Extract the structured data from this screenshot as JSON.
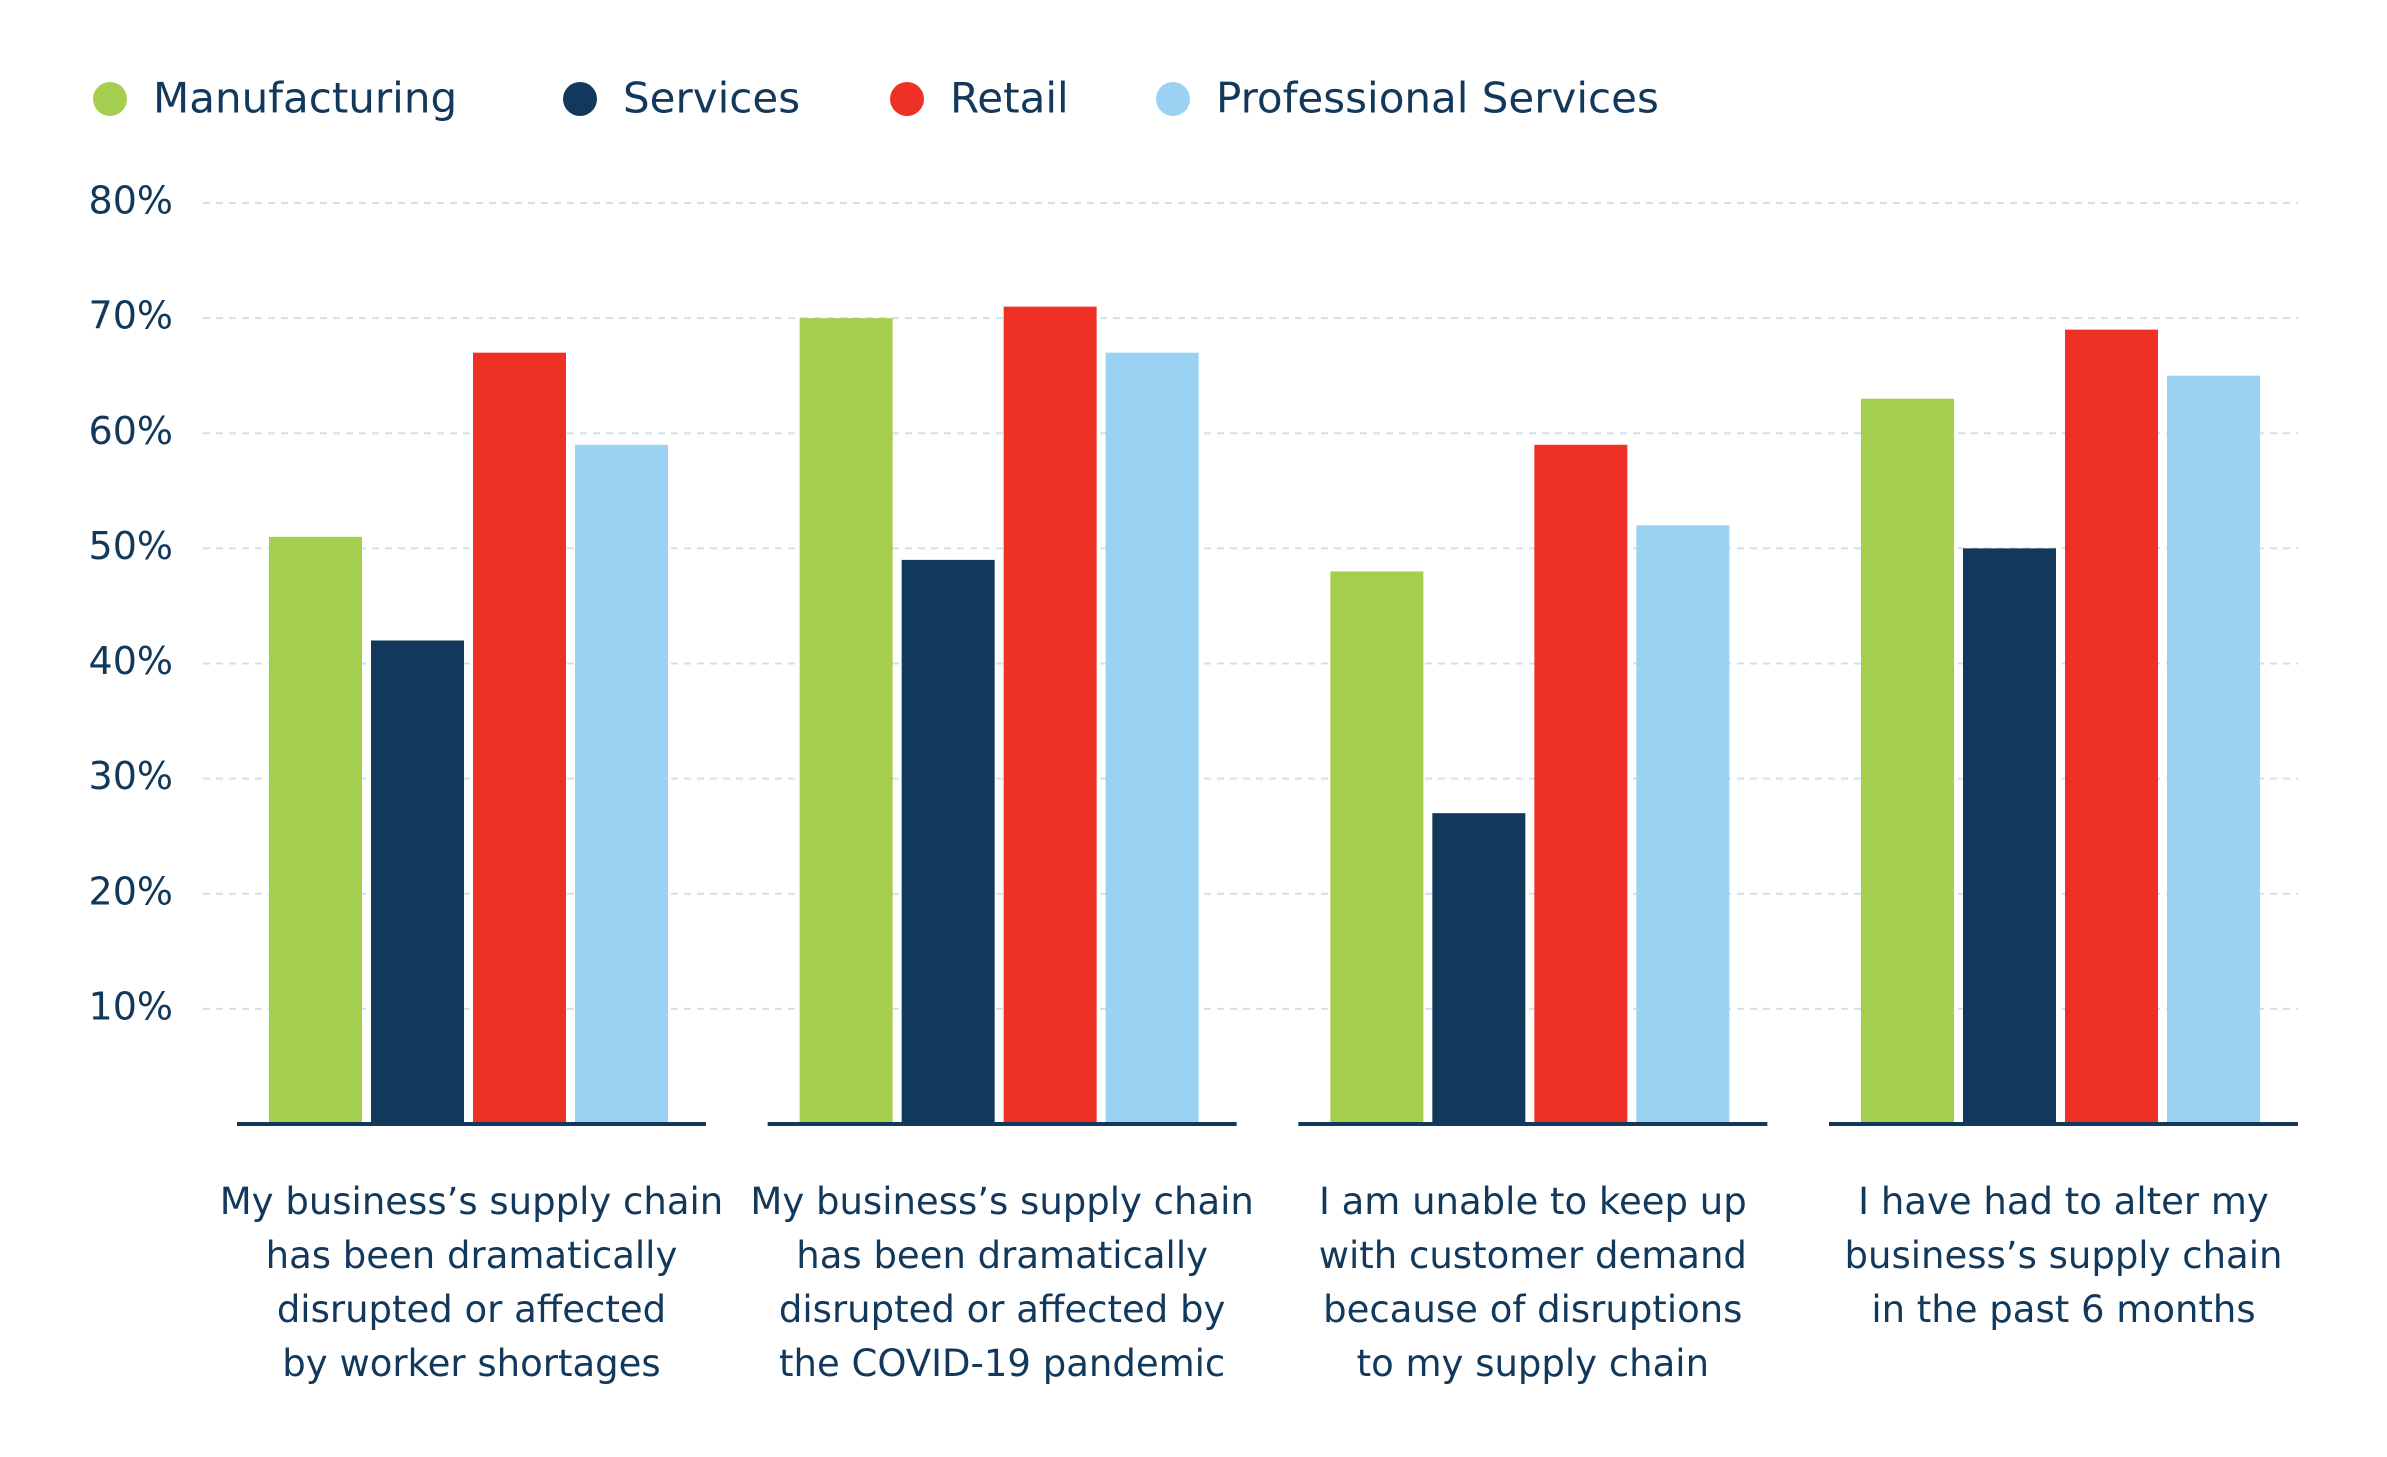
{
  "chart_data": {
    "type": "bar",
    "categories": [
      "My business’s supply chain\nhas been dramatically\ndisrupted or affected\nby worker shortages",
      "My business’s supply chain\nhas been dramatically\ndisrupted or affected by\nthe COVID-19 pandemic",
      "I am unable to keep up\nwith customer demand\nbecause of disruptions\nto my supply chain",
      "I have had to alter my\nbusiness’s supply chain\nin the past 6 months"
    ],
    "series": [
      {
        "name": "Manufacturing",
        "color": "#a6ce4e",
        "values": [
          51,
          70,
          48,
          63
        ]
      },
      {
        "name": "Services",
        "color": "#12395b",
        "values": [
          42,
          49,
          27,
          50
        ]
      },
      {
        "name": "Retail",
        "color": "#ee3124",
        "values": [
          67,
          71,
          59,
          69
        ]
      },
      {
        "name": "Professional Services",
        "color": "#9bd1f3",
        "values": [
          59,
          67,
          52,
          65
        ]
      }
    ],
    "ylim": [
      0,
      80
    ],
    "yticks": [
      {
        "value": 10,
        "label": "10%"
      },
      {
        "value": 20,
        "label": "20%"
      },
      {
        "value": 30,
        "label": "30%"
      },
      {
        "value": 40,
        "label": "40%"
      },
      {
        "value": 50,
        "label": "50%"
      },
      {
        "value": 60,
        "label": "60%"
      },
      {
        "value": 70,
        "label": "70%"
      },
      {
        "value": 80,
        "label": "80%"
      }
    ],
    "grid": true,
    "legend": "top-left"
  }
}
